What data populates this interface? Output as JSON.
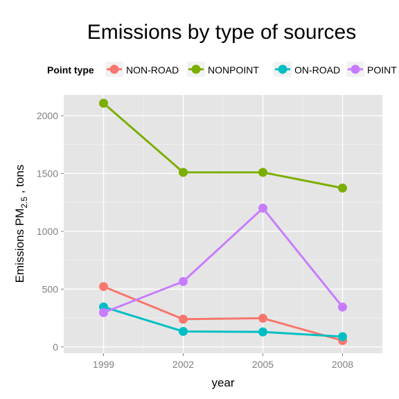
{
  "chart_data": {
    "type": "line",
    "title": "Emissions by type of sources",
    "xlabel": "year",
    "ylabel_main": "Emissions PM",
    "ylabel_sub": "2.5",
    "ylabel_tail": " , tons",
    "legend_title": "Point type",
    "legend_position": "top",
    "grid": true,
    "x": [
      1999,
      2002,
      2005,
      2008
    ],
    "x_ticks": [
      "1999",
      "2002",
      "2005",
      "2008"
    ],
    "y_ticks": [
      "0",
      "500",
      "1000",
      "1500",
      "2000"
    ],
    "y_tick_values": [
      0,
      500,
      1000,
      1500,
      2000
    ],
    "ylim": [
      -55,
      2180
    ],
    "xlim": [
      1997.5,
      2009.5
    ],
    "series": [
      {
        "name": "NON-ROAD",
        "color": "#F8766D",
        "values": [
          522,
          240,
          248,
          55
        ]
      },
      {
        "name": "NONPOINT",
        "color": "#7CAE00",
        "values": [
          2108,
          1510,
          1510,
          1374
        ]
      },
      {
        "name": "ON-ROAD",
        "color": "#00BFC4",
        "values": [
          346,
          134,
          130,
          89
        ]
      },
      {
        "name": "POINT",
        "color": "#C77CFF",
        "values": [
          297,
          566,
          1200,
          345
        ]
      }
    ]
  }
}
